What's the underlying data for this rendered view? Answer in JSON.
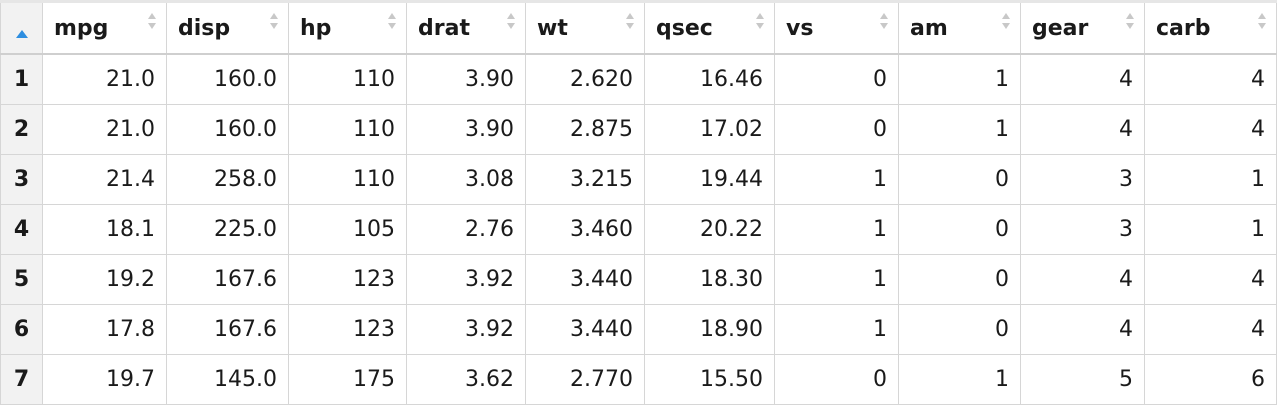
{
  "colors": {
    "accent": "#2e8ee0",
    "grid_line": "#d6d6d6",
    "row_header_bg": "#f2f2f2",
    "sort_arrow": "#c8c8c8"
  },
  "corner": {
    "icon": "sort-ascending-icon"
  },
  "columns": [
    "mpg",
    "disp",
    "hp",
    "drat",
    "wt",
    "qsec",
    "vs",
    "am",
    "gear",
    "carb"
  ],
  "rows": [
    {
      "name": "1",
      "cells": [
        "21.0",
        "160.0",
        "110",
        "3.90",
        "2.620",
        "16.46",
        "0",
        "1",
        "4",
        "4"
      ]
    },
    {
      "name": "2",
      "cells": [
        "21.0",
        "160.0",
        "110",
        "3.90",
        "2.875",
        "17.02",
        "0",
        "1",
        "4",
        "4"
      ]
    },
    {
      "name": "3",
      "cells": [
        "21.4",
        "258.0",
        "110",
        "3.08",
        "3.215",
        "19.44",
        "1",
        "0",
        "3",
        "1"
      ]
    },
    {
      "name": "4",
      "cells": [
        "18.1",
        "225.0",
        "105",
        "2.76",
        "3.460",
        "20.22",
        "1",
        "0",
        "3",
        "1"
      ]
    },
    {
      "name": "5",
      "cells": [
        "19.2",
        "167.6",
        "123",
        "3.92",
        "3.440",
        "18.30",
        "1",
        "0",
        "4",
        "4"
      ]
    },
    {
      "name": "6",
      "cells": [
        "17.8",
        "167.6",
        "123",
        "3.92",
        "3.440",
        "18.90",
        "1",
        "0",
        "4",
        "4"
      ]
    },
    {
      "name": "7",
      "cells": [
        "19.7",
        "145.0",
        "175",
        "3.62",
        "2.770",
        "15.50",
        "0",
        "1",
        "5",
        "6"
      ]
    }
  ]
}
